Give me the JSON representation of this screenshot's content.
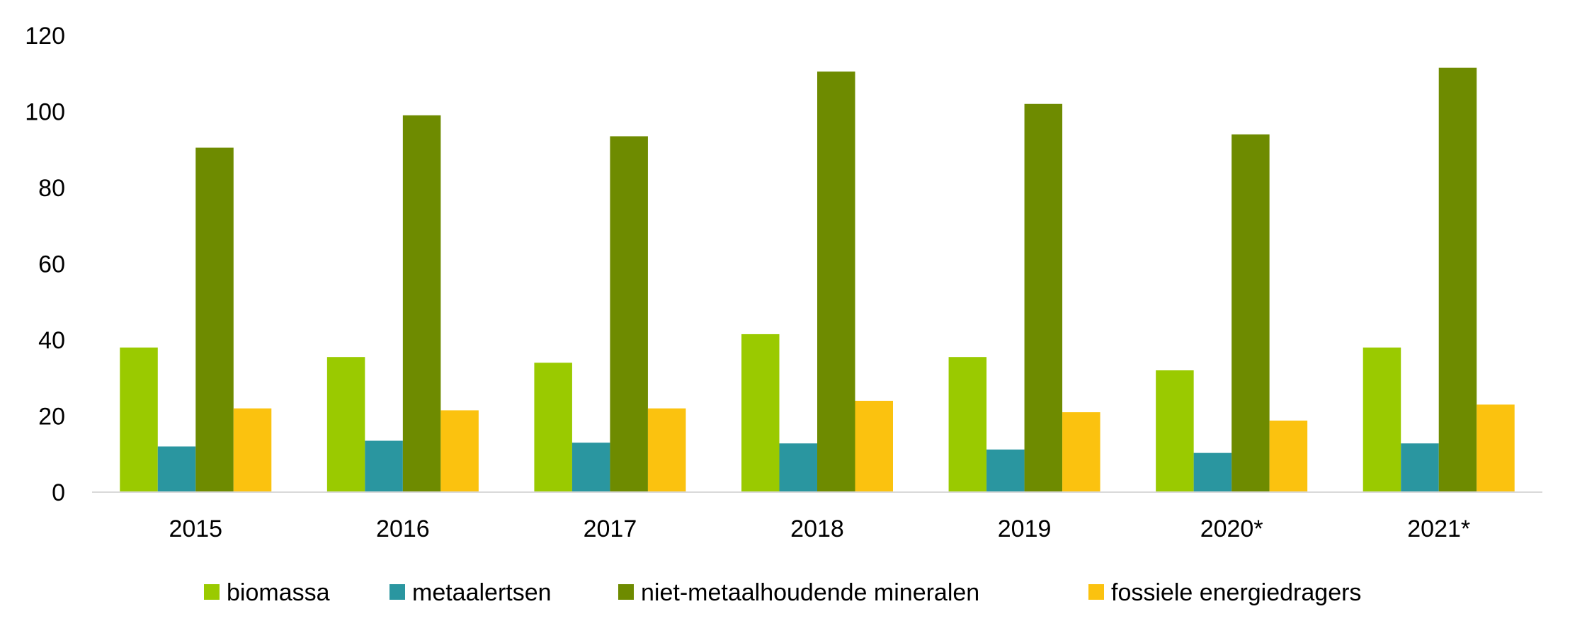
{
  "chart_data": {
    "type": "bar",
    "title": "",
    "xlabel": "",
    "ylabel": "",
    "ylim": [
      0,
      120
    ],
    "yticks": [
      0,
      20,
      40,
      60,
      80,
      100,
      120
    ],
    "grid": false,
    "legend_position": "bottom",
    "categories": [
      "2015",
      "2016",
      "2017",
      "2018",
      "2019",
      "2020*",
      "2021*"
    ],
    "series": [
      {
        "name": "biomassa",
        "color": "#9ACA00",
        "values": [
          38,
          35.5,
          34,
          41.5,
          35.5,
          32,
          38
        ]
      },
      {
        "name": "metaalertsen",
        "color": "#2A96A0",
        "values": [
          12,
          13.5,
          13,
          12.8,
          11.2,
          10.3,
          12.8
        ]
      },
      {
        "name": "niet-metaalhoudende mineralen",
        "color": "#6E8B00",
        "values": [
          90.5,
          99,
          93.5,
          110.5,
          102,
          94,
          111.5
        ]
      },
      {
        "name": "fossiele energiedragers",
        "color": "#FBC20F",
        "values": [
          22,
          21.5,
          22,
          24,
          21,
          18.8,
          23
        ]
      }
    ]
  }
}
